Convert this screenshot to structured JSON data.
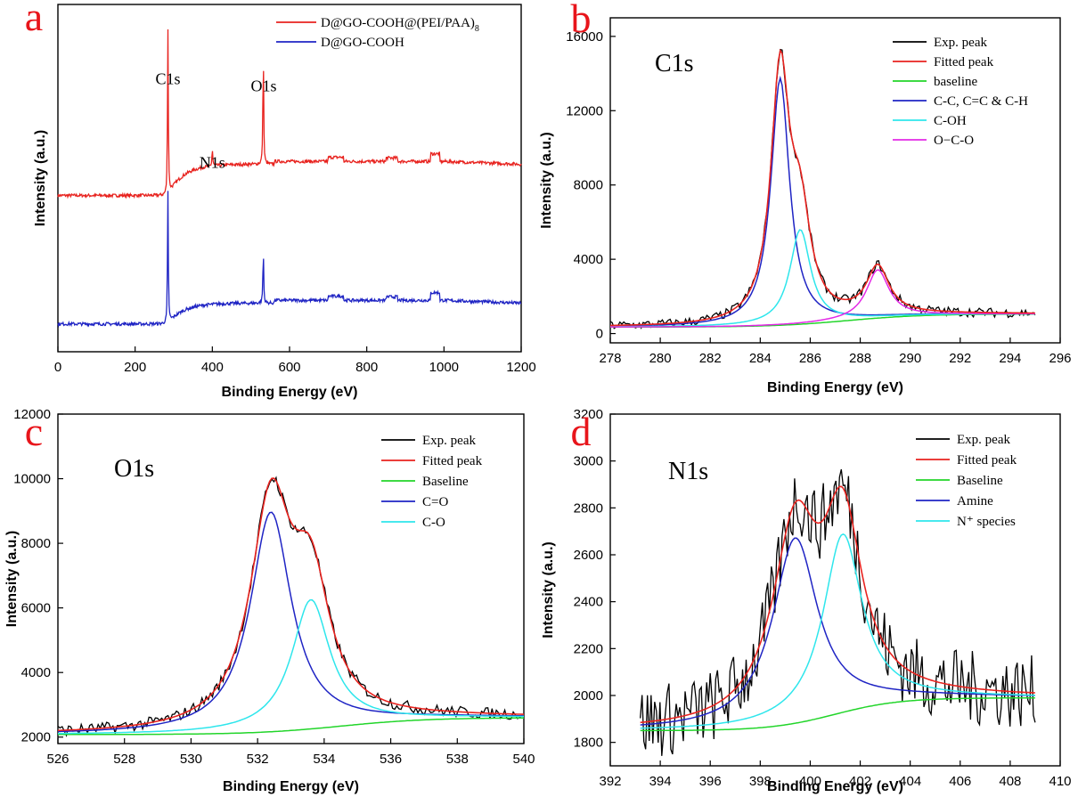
{
  "chart_data": [
    {
      "id": "a",
      "type": "line",
      "panel_letter": "a",
      "xlabel": "Binding  Energy (eV)",
      "ylabel": "Intensity (a.u.)",
      "xlim": [
        0,
        1200
      ],
      "ylim": [
        0,
        100
      ],
      "xticks": [
        0,
        200,
        400,
        600,
        800,
        1000,
        1200
      ],
      "yticks": [],
      "annotations": [
        {
          "text": "C1s",
          "x": 285,
          "y": 77
        },
        {
          "text": "N1s",
          "x": 400,
          "y": 53
        },
        {
          "text": "O1s",
          "x": 533,
          "y": 75
        }
      ],
      "series": [
        {
          "name": "D@GO-COOH@(PEI/PAA)",
          "subscript": "8",
          "color": "#e8231f",
          "kind": "survey",
          "base": 45,
          "peaks": [
            [
              285,
              48
            ],
            [
              400,
              5
            ],
            [
              532,
              32
            ]
          ],
          "ramp": 9
        },
        {
          "name": "D@GO-COOH",
          "color": "#1f24c4",
          "kind": "survey",
          "base": 8,
          "peaks": [
            [
              285,
              38
            ],
            [
              532,
              15
            ]
          ],
          "ramp": 6
        }
      ]
    },
    {
      "id": "b",
      "type": "line",
      "panel_letter": "b",
      "core_label": "C1s",
      "xlabel": "Binding  Energy (eV)",
      "ylabel": "Intensity (a.u.)",
      "xlim": [
        278,
        296
      ],
      "ylim": [
        -500,
        17000
      ],
      "xticks": [
        278,
        280,
        282,
        284,
        286,
        288,
        290,
        292,
        294,
        296
      ],
      "yticks": [
        0,
        4000,
        8000,
        12000,
        16000
      ],
      "x_range": [
        278,
        295
      ],
      "background": {
        "start": 350,
        "end": 1050,
        "center": 287.5,
        "width": 1.5
      },
      "components": [
        {
          "name": "C-C, C=C & C-H",
          "color": "#1f24c4",
          "center": 284.8,
          "amp": 13300,
          "width": 0.45
        },
        {
          "name": "C-OH",
          "color": "#2ee6ec",
          "center": 285.6,
          "amp": 5100,
          "width": 0.5
        },
        {
          "name": "O−C-O",
          "color": "#e329e6",
          "center": 288.7,
          "amp": 2600,
          "width": 0.55
        }
      ],
      "noise": 250,
      "legend": [
        {
          "label": "Exp. peak",
          "color": "#000000"
        },
        {
          "label": "Fitted peak",
          "color": "#e8231f"
        },
        {
          "label": "baseline",
          "color": "#22d52a"
        },
        {
          "label": "C-C, C=C & C-H",
          "color": "#1f24c4"
        },
        {
          "label": "C-OH",
          "color": "#2ee6ec"
        },
        {
          "label": "O−C-O",
          "color": "#e329e6"
        }
      ]
    },
    {
      "id": "c",
      "type": "line",
      "panel_letter": "c",
      "core_label": "O1s",
      "xlabel": "Binding  Energy (eV)",
      "ylabel": "Intensity (a.u.)",
      "xlim": [
        526,
        540
      ],
      "ylim": [
        1800,
        12000
      ],
      "xticks": [
        526,
        528,
        530,
        532,
        534,
        536,
        538,
        540
      ],
      "yticks": [
        2000,
        4000,
        6000,
        8000,
        10000,
        12000
      ],
      "x_range": [
        526,
        540
      ],
      "background": {
        "start": 2080,
        "end": 2600,
        "center": 534.5,
        "width": 1.3
      },
      "components": [
        {
          "name": "C=O",
          "color": "#1f24c4",
          "center": 532.4,
          "amp": 6800,
          "width": 0.75
        },
        {
          "name": "C-O",
          "color": "#2ee6ec",
          "center": 533.6,
          "amp": 4000,
          "width": 0.7
        }
      ],
      "noise": 180,
      "legend": [
        {
          "label": "Exp. peak",
          "color": "#000000"
        },
        {
          "label": "Fitted peak",
          "color": "#e8231f"
        },
        {
          "label": "Baseline",
          "color": "#22d52a"
        },
        {
          "label": "C=O",
          "color": "#1f24c4"
        },
        {
          "label": "C-O",
          "color": "#2ee6ec"
        }
      ]
    },
    {
      "id": "d",
      "type": "line",
      "panel_letter": "d",
      "core_label": "N1s",
      "xlabel": "Binding  Energy (eV)",
      "ylabel": "Intensity (a.u.)",
      "xlim": [
        392,
        410
      ],
      "ylim": [
        1700,
        3200
      ],
      "xticks": [
        392,
        394,
        396,
        398,
        400,
        402,
        404,
        406,
        408,
        410
      ],
      "yticks": [
        1800,
        2000,
        2200,
        2400,
        2600,
        2800,
        3000,
        3200
      ],
      "x_range": [
        393.2,
        409
      ],
      "background": {
        "start": 1850,
        "end": 1990,
        "center": 401,
        "width": 1.3
      },
      "components": [
        {
          "name": "Amine",
          "color": "#1f24c4",
          "center": 399.4,
          "amp": 790,
          "width": 1.1
        },
        {
          "name": "N⁺ species",
          "color": "#2ee6ec",
          "center": 401.3,
          "amp": 760,
          "width": 0.95
        }
      ],
      "noise": 160,
      "legend": [
        {
          "label": "Exp. peak",
          "color": "#000000"
        },
        {
          "label": "Fitted peak",
          "color": "#e8231f"
        },
        {
          "label": "Baseline",
          "color": "#22d52a"
        },
        {
          "label": "Amine",
          "color": "#1f24c4"
        },
        {
          "label": "N⁺ species",
          "color": "#2ee6ec"
        }
      ]
    }
  ],
  "colors": {
    "fit": "#e8231f",
    "baseline": "#22d52a",
    "exp": "#000000",
    "panel_letter": "#e8151b"
  }
}
